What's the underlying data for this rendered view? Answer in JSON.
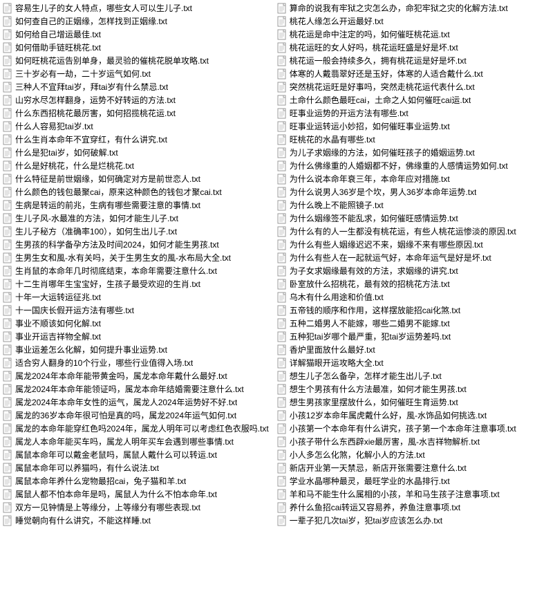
{
  "left": [
    "容易生儿子的女人特点，哪些女人可以生儿子.txt",
    "如何查自己的正姻缘，怎样找到正姻缘.txt",
    "如何给自己增运最佳.txt",
    "如何借助手链旺桃花.txt",
    "如何旺桃花运告别单身，最灵验的催桃花脱单攻略.txt",
    "三十岁必有一劫，二十岁运气如何.txt",
    "三种人不宜拜tai岁，拜tai岁有什么禁忌.txt",
    "山穷水尽怎样翻身，运势不好转运的方法.txt",
    "什么东西招桃花最厉害，如何招揽桃花运.txt",
    "什么人容易犯tai岁.txt",
    "什么生肖本命年不宜穿红，有什么讲究.txt",
    "什么是犯tai岁，如何破解.txt",
    "什么是好桃花，什么是烂桃花.txt",
    "什么特征是前世姻缘，如何确定对方是前世恋人.txt",
    "什么颜色的钱包最聚cai，原来这种颜色的钱包才聚cai.txt",
    "生病是转运的前兆，生病有哪些需要注意的事情.txt",
    "生儿子风-水最准的方法，如何才能生儿子.txt",
    "生儿子秘方（准确率100），如何生出儿子.txt",
    "生男孩的科学备孕方法及时间2024，如何才能生男孩.txt",
    "生男生女和風-水有关吗，关于生男生女的風-水布局大全.txt",
    "生肖鼠的本命年几时彻底结束，本命年需要注意什么.txt",
    "十二生肖哪年生宝宝好，生孩子最受欢迎的生肖.txt",
    "十年一大运转运征兆.txt",
    "十一国庆长假开运方法有哪些.txt",
    "事业不顺该如何化解.txt",
    "事业开运吉祥物全解.txt",
    "事业运差怎么化解，如何提升事业运势.txt",
    "适合穷人翻身的10个行业，哪些行业值得入场.txt",
    "属龙2024年本命年能带黄金吗，属龙本命年戴什么最好.txt",
    "属龙2024年本命年能领证吗，属龙本命年结婚需要注意什么.txt",
    "属龙2024年本命年女性的运气，属龙人2024年运势好不好.txt",
    "属龙的36岁本命年很可怕是真的吗，属龙2024年运气如何.txt",
    "属龙的本命年能穿红色吗2024年，属龙人明年可以考虑红色衣服吗.txt",
    "属龙人本命年能买车吗，属龙人明年买车会遇到哪些事情.txt",
    "属鼠本命年可以戴金老鼠吗，属鼠人戴什么可以转运.txt",
    "属鼠本命年可以养猫吗，有什么说法.txt",
    "属鼠本命年养什么宠物最招cai，兔子猫和羊.txt",
    "属鼠人都不怕本命年是吗，属鼠人为什么不怕本命年.txt",
    "双方一见钟情是上等缘分，上等缘分有哪些表现.txt",
    "睡觉朝向有什么讲究，不能这样睡.txt"
  ],
  "right": [
    "算命的说我有牢狱之灾怎么办，命犯牢狱之灾的化解方法.txt",
    "桃花人缘怎么开运最好.txt",
    "桃花运是命中注定的吗，如何催旺桃花运.txt",
    "桃花运旺的女人好吗，桃花运旺盛是好是坏.txt",
    "桃花运一般会持续多久，拥有桃花运是好是坏.txt",
    "体寒的人戴翡翠好还是玉好，体寒的人适合戴什么.txt",
    "突然桃花运旺是好事吗，突然走桃花运代表什么.txt",
    "土命什么颜色最旺cai，土命之人如何催旺cai运.txt",
    "旺事业运势的开运方法有哪些.txt",
    "旺事业运转运小妙招，如何催旺事业运势.txt",
    "旺桃花的水晶有哪些.txt",
    "为儿子求姻缘的方法，如何催旺孩子的婚姻运势.txt",
    "为什么佛缘重的人婚姻都不好，佛缘重的人感情运势如何.txt",
    "为什么说本命年衰三年，本命年应对措施.txt",
    "为什么说男人36岁是个坎，男人36岁本命年运势.txt",
    "为什么晚上不能照镜子.txt",
    "为什么姻缘签不能乱求，如何催旺感情运势.txt",
    "为什么有的人一生都没有桃花运，有些人桃花运惨淡的原因.txt",
    "为什么有些人姻缘迟迟不来，姻缘不来有哪些原因.txt",
    "为什么有些人在一起就运气好，本命年运气是好是坏.txt",
    "为子女求姻缘最有效的方法，求姻缘的讲究.txt",
    "卧室放什么招桃花，最有效的招桃花方法.txt",
    "乌木有什么用途和价值.txt",
    "五帝钱的顺序和作用，这样摆放能招cai化煞.txt",
    "五种二婚男人不能嫁，哪些二婚男不能嫁.txt",
    "五种犯tai岁哪个最严重，犯tai岁运势差吗.txt",
    "香炉里面放什么最好.txt",
    "详解猫眼开运攻略大全.txt",
    "想生儿子怎么备孕，怎样才能生出儿子.txt",
    "想生个男孩有什么方法最准，如何才能生男孩.txt",
    "想生男孩家里摆放什么，如何催旺生育运势.txt",
    "小孩12岁本命年属虎戴什么好，風-水饰品如何挑选.txt",
    "小孩第一个本命年有什么讲究，孩子第一个本命年注意事项.txt",
    "小孩子带什么东西辟xie最厉害，風-水吉祥物解析.txt",
    "小人多怎么化煞，化解小人的方法.txt",
    "新店开业第一天禁忌，新店开张需要注意什么.txt",
    "学业水晶哪种最灵，最旺学业的水晶排行.txt",
    "羊和马不能生什么属相的小孩，羊和马生孩子注意事项.txt",
    "养什么鱼招cai转运又容易养，养鱼注意事项.txt",
    "一辈子犯几次tai岁，犯tai岁应该怎么办.txt"
  ]
}
